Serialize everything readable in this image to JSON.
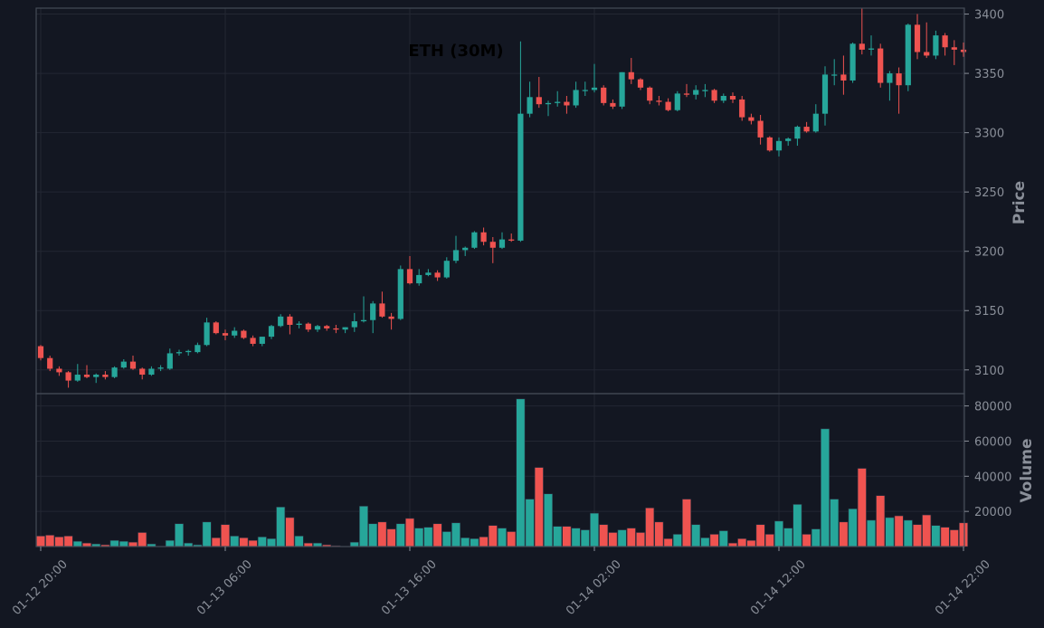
{
  "chart_data": {
    "type": "candlestick",
    "title": "ETH (30M)",
    "price_ylabel": "Price",
    "volume_ylabel": "Volume",
    "price_ylim": [
      3080,
      3405
    ],
    "volume_ylim": [
      0,
      87000
    ],
    "price_yticks": [
      3100,
      3150,
      3200,
      3250,
      3300,
      3350,
      3400
    ],
    "volume_yticks": [
      20000,
      40000,
      60000,
      80000
    ],
    "volume_ytick_labels": [
      "20000",
      "40000",
      "60000",
      "80000"
    ],
    "x_tick_labels": [
      "01-12 20:00",
      "01-13 06:00",
      "01-13 16:00",
      "01-14 02:00",
      "01-14 12:00",
      "01-14 22:00"
    ],
    "x_tick_indices": [
      0,
      20,
      40,
      60,
      80,
      100
    ],
    "grid": true,
    "colors": {
      "up": "#26a69a",
      "down": "#ef5350",
      "background": "#131722",
      "grid": "#232733",
      "frame": "#444a56"
    },
    "candles": [
      [
        3120,
        3121,
        3108,
        3110
      ],
      [
        3110,
        3112,
        3099,
        3101
      ],
      [
        3101,
        3103,
        3095,
        3098
      ],
      [
        3098,
        3099,
        3085,
        3091
      ],
      [
        3091,
        3105,
        3090,
        3096
      ],
      [
        3096,
        3104,
        3093,
        3094
      ],
      [
        3094,
        3097,
        3089,
        3096
      ],
      [
        3096,
        3099,
        3092,
        3094
      ],
      [
        3094,
        3103,
        3093,
        3102
      ],
      [
        3102,
        3109,
        3101,
        3107
      ],
      [
        3107,
        3112,
        3100,
        3101
      ],
      [
        3101,
        3102,
        3092,
        3096
      ],
      [
        3096,
        3103,
        3095,
        3101
      ],
      [
        3101,
        3104,
        3099,
        3102
      ],
      [
        3101,
        3118,
        3100,
        3114
      ],
      [
        3114,
        3117,
        3112,
        3115
      ],
      [
        3115,
        3117,
        3112,
        3116
      ],
      [
        3115,
        3123,
        3114,
        3121
      ],
      [
        3121,
        3144,
        3120,
        3140
      ],
      [
        3140,
        3141,
        3130,
        3131
      ],
      [
        3131,
        3134,
        3125,
        3129
      ],
      [
        3129,
        3136,
        3127,
        3133
      ],
      [
        3133,
        3134,
        3126,
        3127
      ],
      [
        3127,
        3129,
        3120,
        3122
      ],
      [
        3122,
        3128,
        3120,
        3128
      ],
      [
        3128,
        3138,
        3126,
        3137
      ],
      [
        3137,
        3147,
        3136,
        3145
      ],
      [
        3145,
        3147,
        3130,
        3138
      ],
      [
        3138,
        3141,
        3135,
        3139
      ],
      [
        3139,
        3140,
        3132,
        3134
      ],
      [
        3134,
        3138,
        3132,
        3137
      ],
      [
        3137,
        3138,
        3133,
        3135
      ],
      [
        3135,
        3138,
        3131,
        3134
      ],
      [
        3134,
        3136,
        3131,
        3136
      ],
      [
        3136,
        3148,
        3132,
        3141
      ],
      [
        3141,
        3162,
        3140,
        3142
      ],
      [
        3142,
        3158,
        3131,
        3156
      ],
      [
        3156,
        3166,
        3144,
        3145
      ],
      [
        3145,
        3148,
        3134,
        3143
      ],
      [
        3143,
        3188,
        3142,
        3185
      ],
      [
        3185,
        3196,
        3172,
        3173
      ],
      [
        3173,
        3185,
        3171,
        3180
      ],
      [
        3180,
        3185,
        3179,
        3182
      ],
      [
        3182,
        3184,
        3175,
        3178
      ],
      [
        3178,
        3195,
        3177,
        3192
      ],
      [
        3192,
        3213,
        3190,
        3201
      ],
      [
        3201,
        3204,
        3196,
        3203
      ],
      [
        3203,
        3217,
        3202,
        3216
      ],
      [
        3216,
        3220,
        3205,
        3208
      ],
      [
        3208,
        3212,
        3190,
        3203
      ],
      [
        3203,
        3216,
        3202,
        3210
      ],
      [
        3210,
        3215,
        3208,
        3209
      ],
      [
        3209,
        3377,
        3208,
        3316
      ],
      [
        3316,
        3343,
        3313,
        3330
      ],
      [
        3330,
        3347,
        3321,
        3324
      ],
      [
        3324,
        3327,
        3314,
        3325
      ],
      [
        3325,
        3335,
        3322,
        3326
      ],
      [
        3326,
        3331,
        3316,
        3323
      ],
      [
        3323,
        3343,
        3321,
        3336
      ],
      [
        3336,
        3343,
        3331,
        3336
      ],
      [
        3336,
        3358,
        3334,
        3338
      ],
      [
        3338,
        3340,
        3323,
        3325
      ],
      [
        3325,
        3328,
        3320,
        3322
      ],
      [
        3322,
        3351,
        3320,
        3351
      ],
      [
        3351,
        3363,
        3341,
        3345
      ],
      [
        3345,
        3346,
        3336,
        3338
      ],
      [
        3338,
        3339,
        3324,
        3327
      ],
      [
        3327,
        3331,
        3323,
        3326
      ],
      [
        3326,
        3329,
        3318,
        3319
      ],
      [
        3319,
        3335,
        3318,
        3333
      ],
      [
        3333,
        3341,
        3330,
        3332
      ],
      [
        3332,
        3340,
        3328,
        3336
      ],
      [
        3335,
        3341,
        3330,
        3336
      ],
      [
        3336,
        3337,
        3325,
        3327
      ],
      [
        3327,
        3333,
        3325,
        3331
      ],
      [
        3331,
        3334,
        3325,
        3328
      ],
      [
        3328,
        3331,
        3310,
        3313
      ],
      [
        3313,
        3316,
        3307,
        3310
      ],
      [
        3310,
        3315,
        3290,
        3296
      ],
      [
        3296,
        3297,
        3284,
        3285
      ],
      [
        3285,
        3296,
        3280,
        3293
      ],
      [
        3293,
        3296,
        3289,
        3295
      ],
      [
        3295,
        3306,
        3289,
        3305
      ],
      [
        3305,
        3309,
        3300,
        3301
      ],
      [
        3301,
        3324,
        3300,
        3316
      ],
      [
        3316,
        3356,
        3306,
        3349
      ],
      [
        3349,
        3362,
        3340,
        3349
      ],
      [
        3349,
        3365,
        3332,
        3344
      ],
      [
        3344,
        3376,
        3342,
        3375
      ],
      [
        3375,
        3405,
        3366,
        3370
      ],
      [
        3370,
        3382,
        3365,
        3371
      ],
      [
        3371,
        3375,
        3338,
        3342
      ],
      [
        3342,
        3352,
        3327,
        3350
      ],
      [
        3350,
        3355,
        3316,
        3340
      ],
      [
        3340,
        3392,
        3335,
        3391
      ],
      [
        3391,
        3400,
        3362,
        3368
      ],
      [
        3368,
        3393,
        3363,
        3365
      ],
      [
        3365,
        3386,
        3362,
        3382
      ],
      [
        3382,
        3384,
        3365,
        3372
      ],
      [
        3372,
        3378,
        3357,
        3370
      ],
      [
        3370,
        3376,
        3364,
        3368
      ]
    ],
    "volume": [
      6000,
      6500,
      5500,
      6000,
      3000,
      2000,
      1500,
      1000,
      3500,
      3000,
      2500,
      8000,
      1500,
      100,
      3500,
      13000,
      2000,
      1000,
      14000,
      5000,
      12500,
      6000,
      5000,
      3500,
      5500,
      4500,
      22500,
      16500,
      6000,
      2000,
      2000,
      1000,
      500,
      100,
      2500,
      23000,
      13000,
      14000,
      10000,
      13000,
      16000,
      10500,
      11000,
      13000,
      8500,
      13500,
      5000,
      4500,
      5500,
      12000,
      10500,
      8500,
      84000,
      27000,
      45000,
      30000,
      11500,
      11500,
      10500,
      9500,
      19000,
      12500,
      8000,
      9500,
      10500,
      8000,
      22000,
      14000,
      4500,
      7000,
      27000,
      12500,
      5000,
      7000,
      9000,
      2000,
      4500,
      3500,
      12500,
      7000,
      14500,
      10500,
      24000,
      7000,
      10000,
      67000,
      27000,
      14000,
      21500,
      44500,
      15000,
      29000,
      16500,
      17500,
      15000,
      12500,
      18000,
      12000,
      11000,
      9500,
      13500
    ]
  }
}
